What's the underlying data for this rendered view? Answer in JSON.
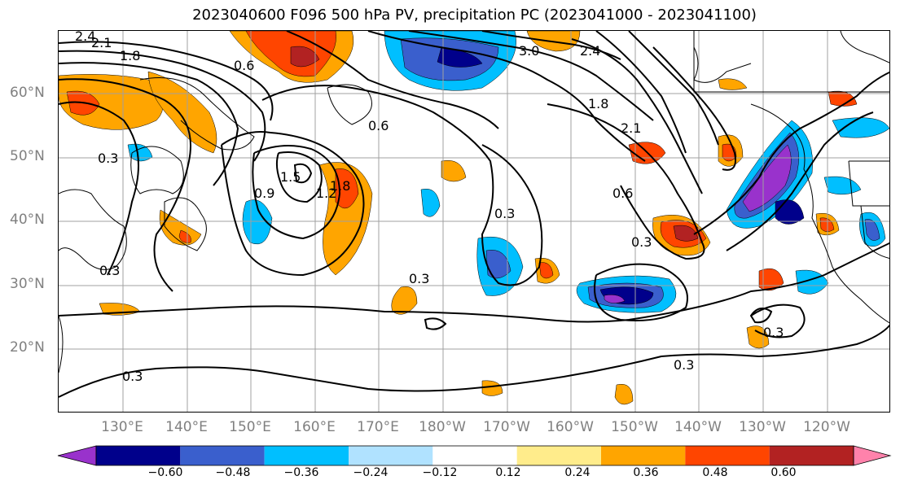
{
  "title": "2023040600 F096 500 hPa PV, precipitation PC (2023041000 - 2023041100)",
  "lat_labels": [
    "60°N",
    "50°N",
    "40°N",
    "30°N",
    "20°N"
  ],
  "lon_labels": [
    "130°E",
    "140°E",
    "150°E",
    "160°E",
    "170°E",
    "180°W",
    "170°W",
    "160°W",
    "150°W",
    "140°W",
    "130°W",
    "120°W"
  ],
  "contour_labels": [
    "2.1",
    "1.8",
    "2.4",
    "0.6",
    "0.6",
    "0.3",
    "1.5",
    "1.2",
    "1.8",
    "0.9",
    "0.3",
    "0.3",
    "0.3",
    "3.0",
    "2.4",
    "1.8",
    "2.1",
    "0.6",
    "0.3",
    "0.3",
    "0.3",
    "0.3"
  ],
  "colorbar": {
    "ticks": [
      "−0.60",
      "−0.48",
      "−0.36",
      "−0.24",
      "−0.12",
      "0.12",
      "0.24",
      "0.36",
      "0.48",
      "0.60"
    ],
    "colors": [
      "#9932cc",
      "#00008b",
      "#3a5fcd",
      "#00bfff",
      "#b0e2ff",
      "#ffffff",
      "#ffec8b",
      "#ffa500",
      "#ff4500",
      "#b22222",
      "#ff82ab"
    ]
  }
}
